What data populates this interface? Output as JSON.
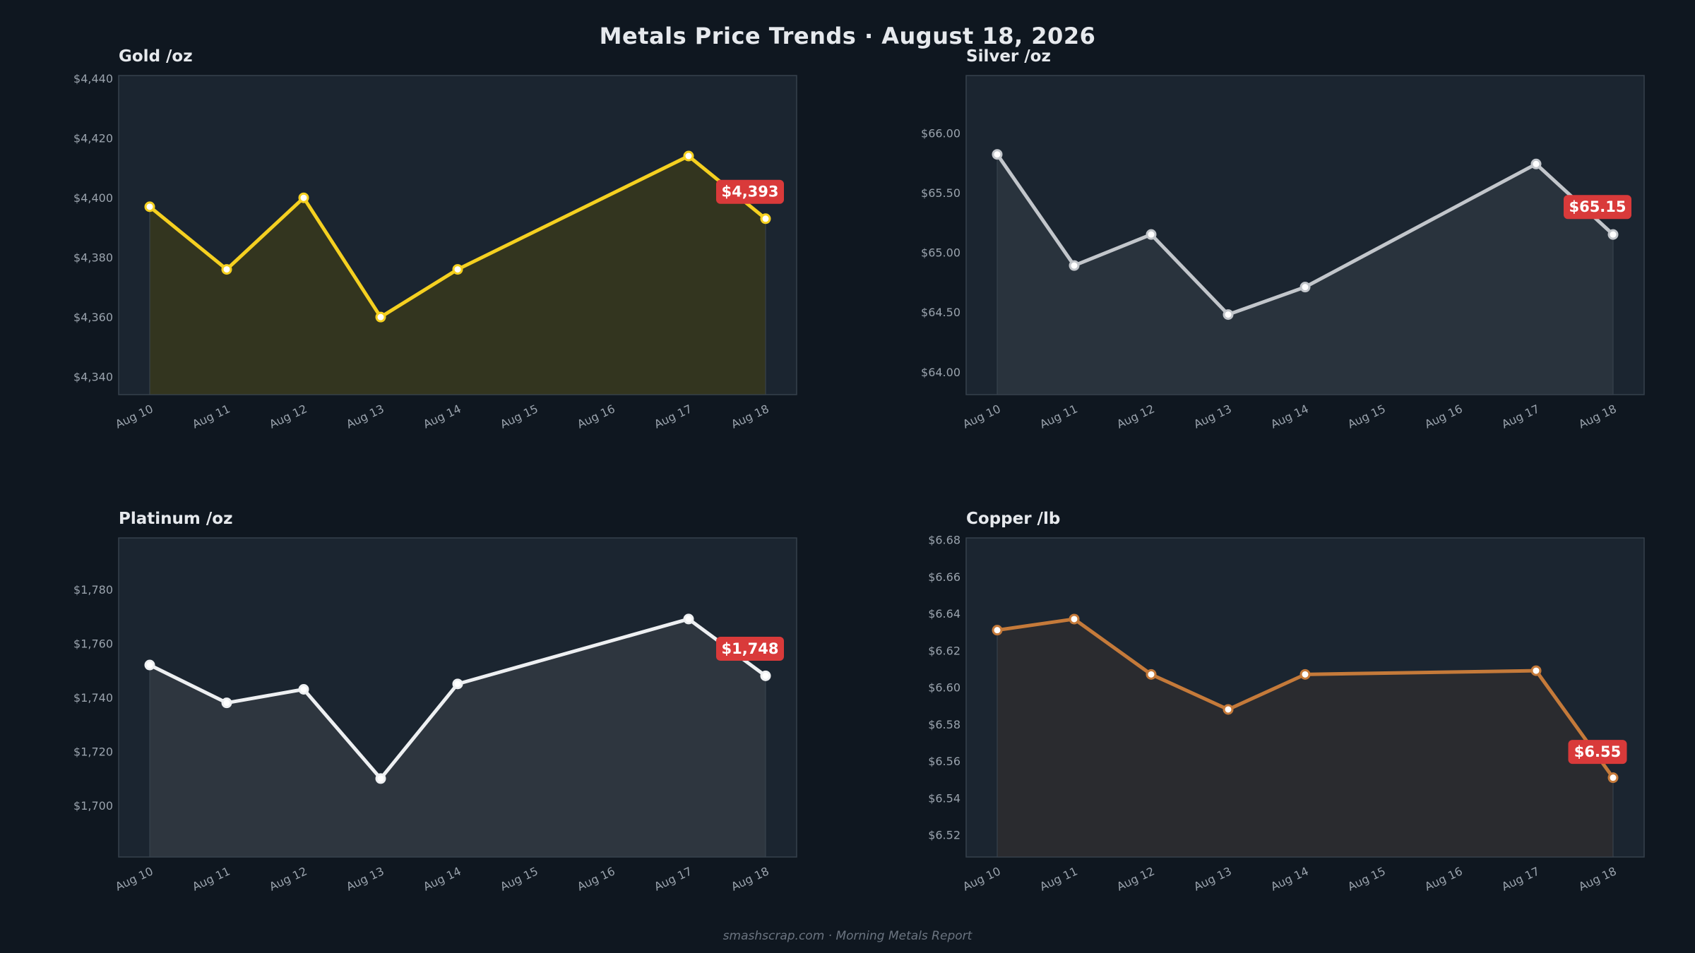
{
  "title": "Metals Price Trends  ·  August 18, 2026",
  "footer": "smashscrap.com  ·  Morning Metals Report",
  "chart_data": [
    {
      "type": "line",
      "title": "Gold  /oz",
      "color": "#f5d020",
      "fill": "#33351f",
      "dates": [
        "Aug 10",
        "Aug 11",
        "Aug 12",
        "Aug 13",
        "Aug 14",
        "Aug 15",
        "Aug 16",
        "Aug 17",
        "Aug 18"
      ],
      "points": [
        {
          "x": "Aug 10",
          "y": 4397
        },
        {
          "x": "Aug 11",
          "y": 4376
        },
        {
          "x": "Aug 12",
          "y": 4400
        },
        {
          "x": "Aug 13",
          "y": 4360
        },
        {
          "x": "Aug 14",
          "y": 4376
        },
        {
          "x": "Aug 17",
          "y": 4414
        },
        {
          "x": "Aug 18",
          "y": 4393
        }
      ],
      "ylim": [
        4334,
        4441
      ],
      "yticks": [
        4340,
        4360,
        4380,
        4400,
        4420,
        4440
      ],
      "ytick_labels": [
        "$4,340",
        "$4,360",
        "$4,380",
        "$4,400",
        "$4,420",
        "$4,440"
      ],
      "callout": "$4,393",
      "callout_y": 4402
    },
    {
      "type": "line",
      "title": "Silver  /oz",
      "color": "#c2c6cb",
      "fill": "#29333d",
      "dates": [
        "Aug 10",
        "Aug 11",
        "Aug 12",
        "Aug 13",
        "Aug 14",
        "Aug 15",
        "Aug 16",
        "Aug 17",
        "Aug 18"
      ],
      "points": [
        {
          "x": "Aug 10",
          "y": 65.82
        },
        {
          "x": "Aug 11",
          "y": 64.89
        },
        {
          "x": "Aug 12",
          "y": 65.15
        },
        {
          "x": "Aug 13",
          "y": 64.48
        },
        {
          "x": "Aug 14",
          "y": 64.71
        },
        {
          "x": "Aug 17",
          "y": 65.74
        },
        {
          "x": "Aug 18",
          "y": 65.15
        }
      ],
      "ylim": [
        63.81,
        66.48
      ],
      "yticks": [
        64.0,
        64.5,
        65.0,
        65.5,
        66.0
      ],
      "ytick_labels": [
        "64.00",
        "64.50",
        "65.00",
        "65.50",
        "$66.00"
      ],
      "ytick_labels_display": [
        "$64.00",
        "$64.50",
        "$65.00",
        "$65.50",
        "$66.00"
      ],
      "callout": "$65.15",
      "callout_y": 65.38
    },
    {
      "type": "line",
      "title": "Platinum  /oz",
      "color": "#eef0f2",
      "fill": "#2e363f",
      "dates": [
        "Aug 10",
        "Aug 11",
        "Aug 12",
        "Aug 13",
        "Aug 14",
        "Aug 15",
        "Aug 16",
        "Aug 17",
        "Aug 18"
      ],
      "points": [
        {
          "x": "Aug 10",
          "y": 1752
        },
        {
          "x": "Aug 11",
          "y": 1738
        },
        {
          "x": "Aug 12",
          "y": 1743
        },
        {
          "x": "Aug 13",
          "y": 1710
        },
        {
          "x": "Aug 14",
          "y": 1745
        },
        {
          "x": "Aug 17",
          "y": 1769
        },
        {
          "x": "Aug 18",
          "y": 1748
        }
      ],
      "ylim": [
        1681,
        1799
      ],
      "yticks": [
        1700,
        1720,
        1740,
        1760,
        1780
      ],
      "ytick_labels": [
        "$1,700",
        "$1,720",
        "$1,740",
        "$1,760",
        "$1,780"
      ],
      "callout": "$1,748",
      "callout_y": 1758
    },
    {
      "type": "line",
      "title": "Copper  /lb",
      "color": "#c57a3a",
      "fill": "#2a2b2f",
      "dates": [
        "Aug 10",
        "Aug 11",
        "Aug 12",
        "Aug 13",
        "Aug 14",
        "Aug 15",
        "Aug 16",
        "Aug 17",
        "Aug 18"
      ],
      "points": [
        {
          "x": "Aug 10",
          "y": 6.631
        },
        {
          "x": "Aug 11",
          "y": 6.637
        },
        {
          "x": "Aug 12",
          "y": 6.607
        },
        {
          "x": "Aug 13",
          "y": 6.588
        },
        {
          "x": "Aug 14",
          "y": 6.607
        },
        {
          "x": "Aug 17",
          "y": 6.609
        },
        {
          "x": "Aug 18",
          "y": 6.551
        }
      ],
      "ylim": [
        6.508,
        6.681
      ],
      "yticks": [
        6.52,
        6.54,
        6.56,
        6.58,
        6.6,
        6.62,
        6.64,
        6.66,
        6.68
      ],
      "ytick_labels": [
        "$6.52",
        "$6.54",
        "$6.56",
        "$6.58",
        "$6.60",
        "$6.62",
        "$6.64",
        "$6.66",
        "$6.68"
      ],
      "callout": "$6.55",
      "callout_y": 6.565
    }
  ]
}
